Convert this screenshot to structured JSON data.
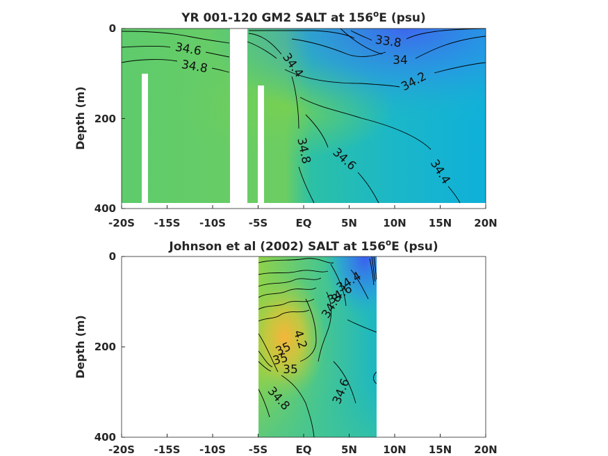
{
  "chart_data": [
    {
      "type": "heatmap",
      "title": "YR 001-120 GM2 SALT at 156",
      "title_sup": "o",
      "title_end": "E (psu)",
      "ylabel": "Depth (m)",
      "xlim": [
        -20,
        20
      ],
      "ylim": [
        400,
        0
      ],
      "x_ticks": [
        -20,
        -15,
        -10,
        -5,
        0,
        5,
        10,
        15,
        20
      ],
      "x_tick_labels": [
        "-20S",
        "-15S",
        "-10S",
        "-5S",
        "EQ",
        "5N",
        "10N",
        "15N",
        "20N"
      ],
      "y_ticks": [
        0,
        200,
        400
      ],
      "y_tick_labels": [
        "0",
        "200",
        "400"
      ],
      "data_extent_x": [
        -20,
        20
      ],
      "data_extent_depth": [
        0,
        385
      ],
      "masked_columns": [
        {
          "x": [
            -17.6,
            -16.9
          ],
          "depth_from": 100,
          "depth_to": 400
        },
        {
          "x": [
            -8.2,
            -6.3
          ],
          "depth_from": 0,
          "depth_to": 400
        },
        {
          "x": [
            -5.1,
            -4.4
          ],
          "depth_from": 125,
          "depth_to": 400
        }
      ],
      "contour_labels": [
        "34.6",
        "34.8",
        "34.4",
        "33.8",
        "34",
        "34.2",
        "34.8",
        "34.6",
        "34.4"
      ],
      "colors": {
        "low": "#3a6ef0",
        "mid": "#1fb8c8",
        "green": "#6fd05a",
        "high": "#f4b93a"
      }
    },
    {
      "type": "heatmap",
      "title": "Johnson et al (2002) SALT at 156",
      "title_sup": "o",
      "title_end": "E (psu)",
      "ylabel": "Depth (m)",
      "xlim": [
        -20,
        20
      ],
      "ylim": [
        400,
        0
      ],
      "x_ticks": [
        -20,
        -15,
        -10,
        -5,
        0,
        5,
        10,
        15,
        20
      ],
      "x_tick_labels": [
        "-20S",
        "-15S",
        "-10S",
        "-5S",
        "EQ",
        "5N",
        "10N",
        "15N",
        "20N"
      ],
      "y_ticks": [
        0,
        200,
        400
      ],
      "y_tick_labels": [
        "0",
        "200",
        "400"
      ],
      "data_extent_x": [
        -5,
        8
      ],
      "data_extent_depth": [
        0,
        400
      ],
      "contour_labels": [
        "34.4",
        "34.6",
        "34.8",
        "4.2",
        "35",
        "35",
        "35",
        "34.8",
        "34.6"
      ],
      "colors": {
        "low": "#3a6ef0",
        "mid": "#1fb8c8",
        "green": "#6fd05a",
        "high": "#f4b93a"
      }
    }
  ]
}
